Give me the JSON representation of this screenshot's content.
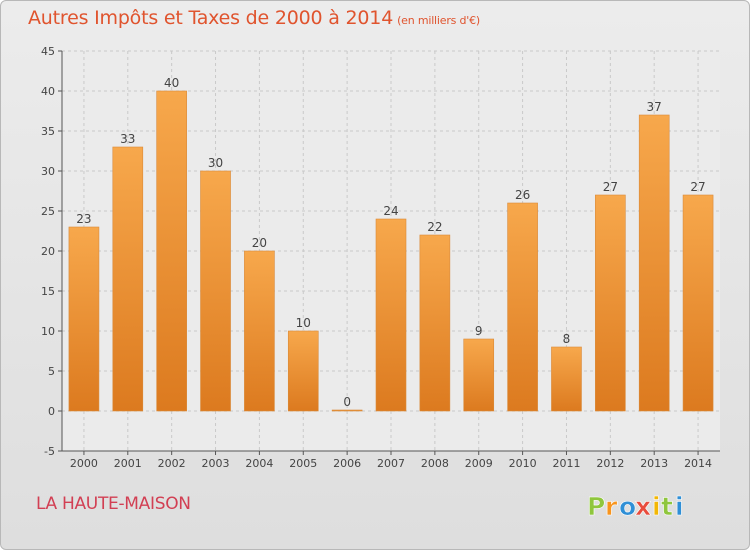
{
  "header": {
    "title": "Autres Impôts et Taxes de 2000 à 2014",
    "unit": "(en milliers d'€)"
  },
  "footer": {
    "commune": "LA HAUTE-MAISON",
    "brand_letters": [
      "P",
      "r",
      "o",
      "x",
      "i",
      "t",
      "i"
    ],
    "brand_colors": [
      "#8fc63d",
      "#f7941d",
      "#2f8fd6",
      "#e84c3d",
      "#f2b705",
      "#8fc63d",
      "#2f8fd6"
    ]
  },
  "colors": {
    "bar_light": "#f7a84c",
    "bar_dark": "#dc7a1f",
    "title": "#e0542e",
    "commune": "#d23f53",
    "grid": "#c9c9c9"
  },
  "chart_data": {
    "type": "bar",
    "title": "Autres Impôts et Taxes de 2000 à 2014",
    "subtitle": "(en milliers d'€)",
    "xlabel": "",
    "ylabel": "",
    "categories": [
      "2000",
      "2001",
      "2002",
      "2003",
      "2004",
      "2005",
      "2006",
      "2007",
      "2008",
      "2009",
      "2010",
      "2011",
      "2012",
      "2013",
      "2014"
    ],
    "values": [
      23,
      33,
      40,
      30,
      20,
      10,
      0,
      24,
      22,
      9,
      26,
      8,
      27,
      37,
      27
    ],
    "ylim": [
      -5,
      45
    ],
    "yticks": [
      -5,
      0,
      5,
      10,
      15,
      20,
      25,
      30,
      35,
      40,
      45
    ],
    "grid": true,
    "legend": "none"
  }
}
